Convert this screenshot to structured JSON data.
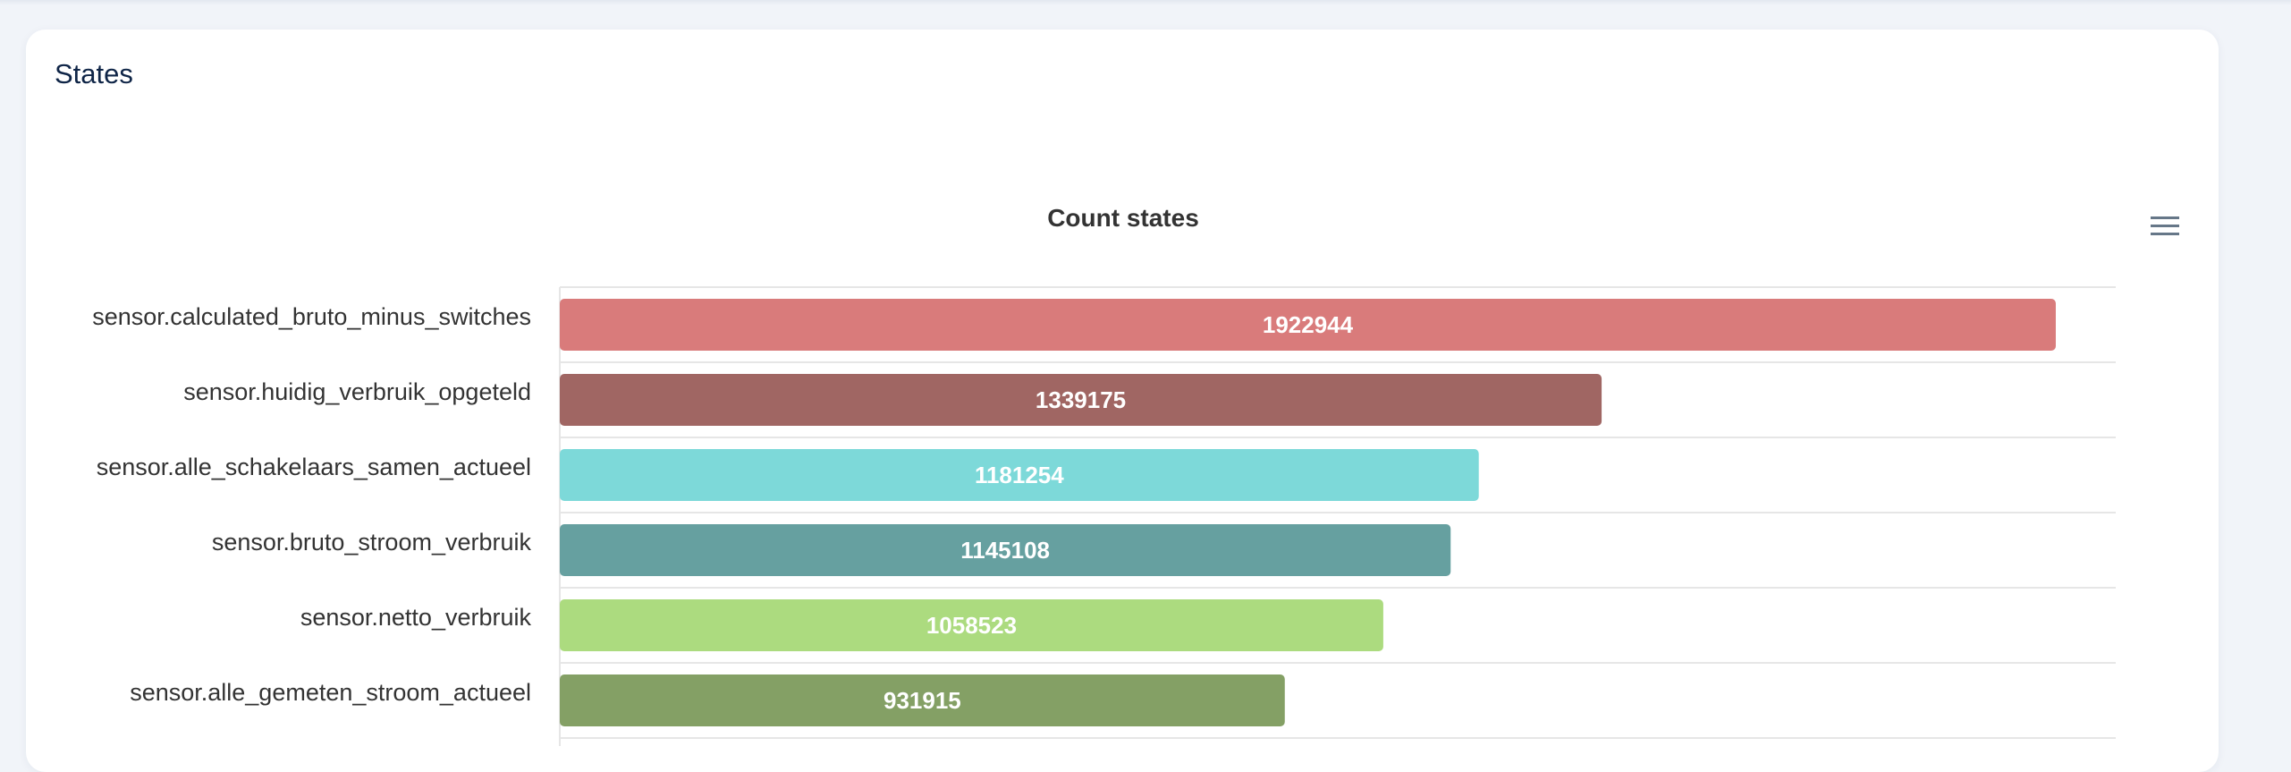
{
  "card": {
    "title": "States"
  },
  "chart_menu": {
    "icon": "hamburger-menu-icon"
  },
  "chart_data": {
    "type": "bar",
    "orientation": "horizontal",
    "title": "Count states",
    "xlabel": "",
    "ylabel": "",
    "categories": [
      "sensor.calculated_bruto_minus_switches",
      "sensor.huidig_verbruik_opgeteld",
      "sensor.alle_schakelaars_samen_actueel",
      "sensor.bruto_stroom_verbruik",
      "sensor.netto_verbruik",
      "sensor.alle_gemeten_stroom_actueel"
    ],
    "values": [
      1922944,
      1339175,
      1181254,
      1145108,
      1058523,
      931915
    ],
    "colors": [
      "#d97b7b",
      "#a06663",
      "#7dd9d9",
      "#66a0a0",
      "#acdb7f",
      "#84a065"
    ],
    "xlim": [
      0,
      2000000
    ],
    "data_labels": true,
    "grid": true,
    "legend": "none"
  }
}
